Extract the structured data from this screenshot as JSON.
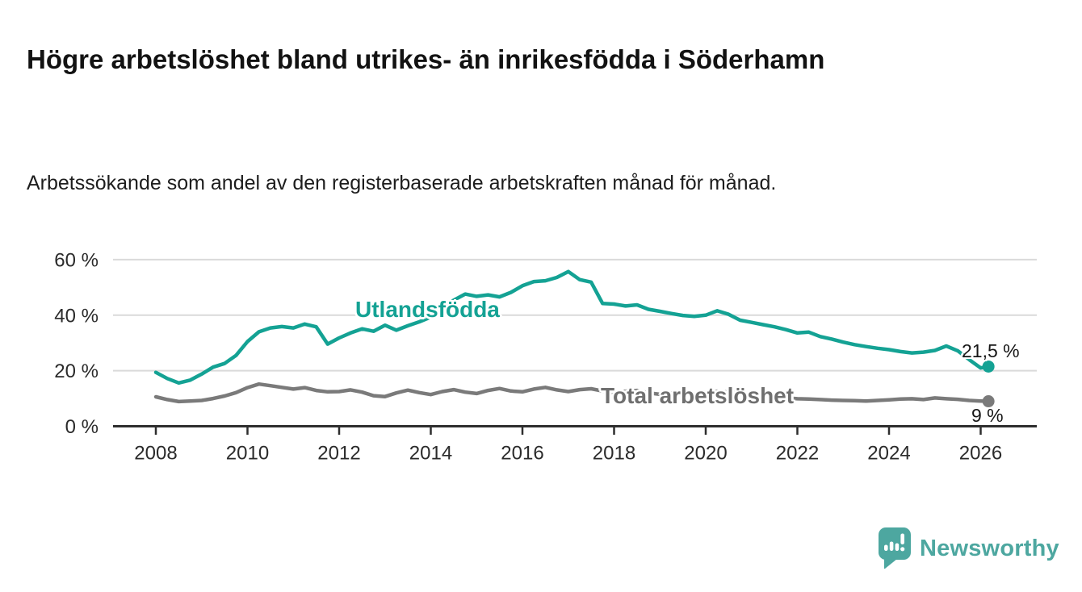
{
  "header": {
    "title": "Högre arbetslöshet bland utrikes- än inrikesfödda i Söderhamn",
    "subtitle": "Arbetssökande som andel av den registerbaserade arbetskraften månad för månad."
  },
  "colors": {
    "series_foreign_born": "#14a294",
    "series_total": "#7a7a7a",
    "series_total_label": "#6f6f6f",
    "gridline": "#dadada",
    "axis": "#2e2e2e",
    "tick_text": "#2b2b2b",
    "title_text": "#121212",
    "brand_teal": "#4da7a0"
  },
  "chart_data": {
    "type": "line",
    "title": "",
    "xlabel": "",
    "ylabel": "",
    "grid": "horizontal",
    "ylim": [
      0,
      60
    ],
    "xlim": [
      2007.1,
      2027.2
    ],
    "y_ticks": [
      {
        "value": 0,
        "label": "0 %"
      },
      {
        "value": 20,
        "label": "20 %"
      },
      {
        "value": 40,
        "label": "40 %"
      },
      {
        "value": 60,
        "label": "60 %"
      }
    ],
    "y_gridlines": [
      20,
      40,
      60
    ],
    "x_ticks": [
      2008,
      2010,
      2012,
      2014,
      2016,
      2018,
      2020,
      2022,
      2024,
      2026
    ],
    "x": [
      2008,
      2008.25,
      2008.5,
      2008.75,
      2009,
      2009.25,
      2009.5,
      2009.75,
      2010,
      2010.25,
      2010.5,
      2010.75,
      2011,
      2011.25,
      2011.5,
      2011.75,
      2012,
      2012.25,
      2012.5,
      2012.75,
      2013,
      2013.25,
      2013.5,
      2013.75,
      2014,
      2014.25,
      2014.5,
      2014.75,
      2015,
      2015.25,
      2015.5,
      2015.75,
      2016,
      2016.25,
      2016.5,
      2016.75,
      2017,
      2017.25,
      2017.5,
      2017.75,
      2018,
      2018.25,
      2018.5,
      2018.75,
      2019,
      2019.25,
      2019.5,
      2019.75,
      2020,
      2020.25,
      2020.5,
      2020.75,
      2021,
      2021.25,
      2021.5,
      2021.75,
      2022,
      2022.25,
      2022.5,
      2022.75,
      2023,
      2023.25,
      2023.5,
      2023.75,
      2024,
      2024.25,
      2024.5,
      2024.75,
      2025,
      2025.25,
      2025.5,
      2025.75,
      2026,
      2026.17
    ],
    "series": [
      {
        "name": "Utlandsfödda",
        "color": "#14a294",
        "end_label": "21,5 %",
        "end_value": 21.5,
        "values": [
          19.4,
          17.2,
          15.6,
          16.6,
          18.8,
          21.3,
          22.6,
          25.5,
          30.5,
          34.0,
          35.4,
          35.9,
          35.4,
          36.8,
          35.8,
          29.6,
          31.8,
          33.6,
          35.1,
          34.2,
          36.4,
          34.6,
          36.2,
          37.6,
          39.3,
          42.4,
          45.4,
          47.6,
          46.8,
          47.3,
          46.6,
          48.2,
          50.6,
          52.1,
          52.4,
          53.6,
          55.7,
          52.8,
          51.9,
          44.2,
          44.0,
          43.3,
          43.7,
          42.1,
          41.4,
          40.6,
          39.9,
          39.6,
          40.0,
          41.6,
          40.3,
          38.2,
          37.4,
          36.6,
          35.8,
          34.8,
          33.6,
          33.9,
          32.3,
          31.4,
          30.3,
          29.4,
          28.7,
          28.1,
          27.6,
          26.9,
          26.4,
          26.7,
          27.3,
          28.9,
          27.2,
          24.0,
          21.0,
          21.5
        ]
      },
      {
        "name": "Total arbetslöshet",
        "color": "#7a7a7a",
        "end_label": "9 %",
        "end_value": 9,
        "values": [
          10.6,
          9.6,
          8.9,
          9.1,
          9.3,
          10.0,
          10.9,
          12.1,
          13.9,
          15.2,
          14.6,
          14.0,
          13.4,
          13.9,
          12.9,
          12.4,
          12.5,
          13.1,
          12.3,
          11.0,
          10.7,
          12.0,
          13.0,
          12.1,
          11.4,
          12.5,
          13.2,
          12.3,
          11.8,
          12.9,
          13.6,
          12.7,
          12.4,
          13.4,
          14.0,
          13.1,
          12.5,
          13.2,
          13.5,
          12.7,
          12.1,
          12.6,
          12.9,
          12.0,
          11.5,
          11.9,
          12.2,
          11.6,
          11.8,
          12.6,
          12.3,
          11.8,
          11.3,
          11.1,
          10.7,
          10.2,
          9.9,
          9.8,
          9.6,
          9.4,
          9.3,
          9.2,
          9.1,
          9.3,
          9.5,
          9.8,
          9.9,
          9.6,
          10.2,
          9.9,
          9.7,
          9.3,
          9.1,
          9.0
        ]
      }
    ]
  },
  "branding": {
    "logo_text": "Newsworthy",
    "logo_icon": "speech-bubble-bar-chart-icon"
  }
}
